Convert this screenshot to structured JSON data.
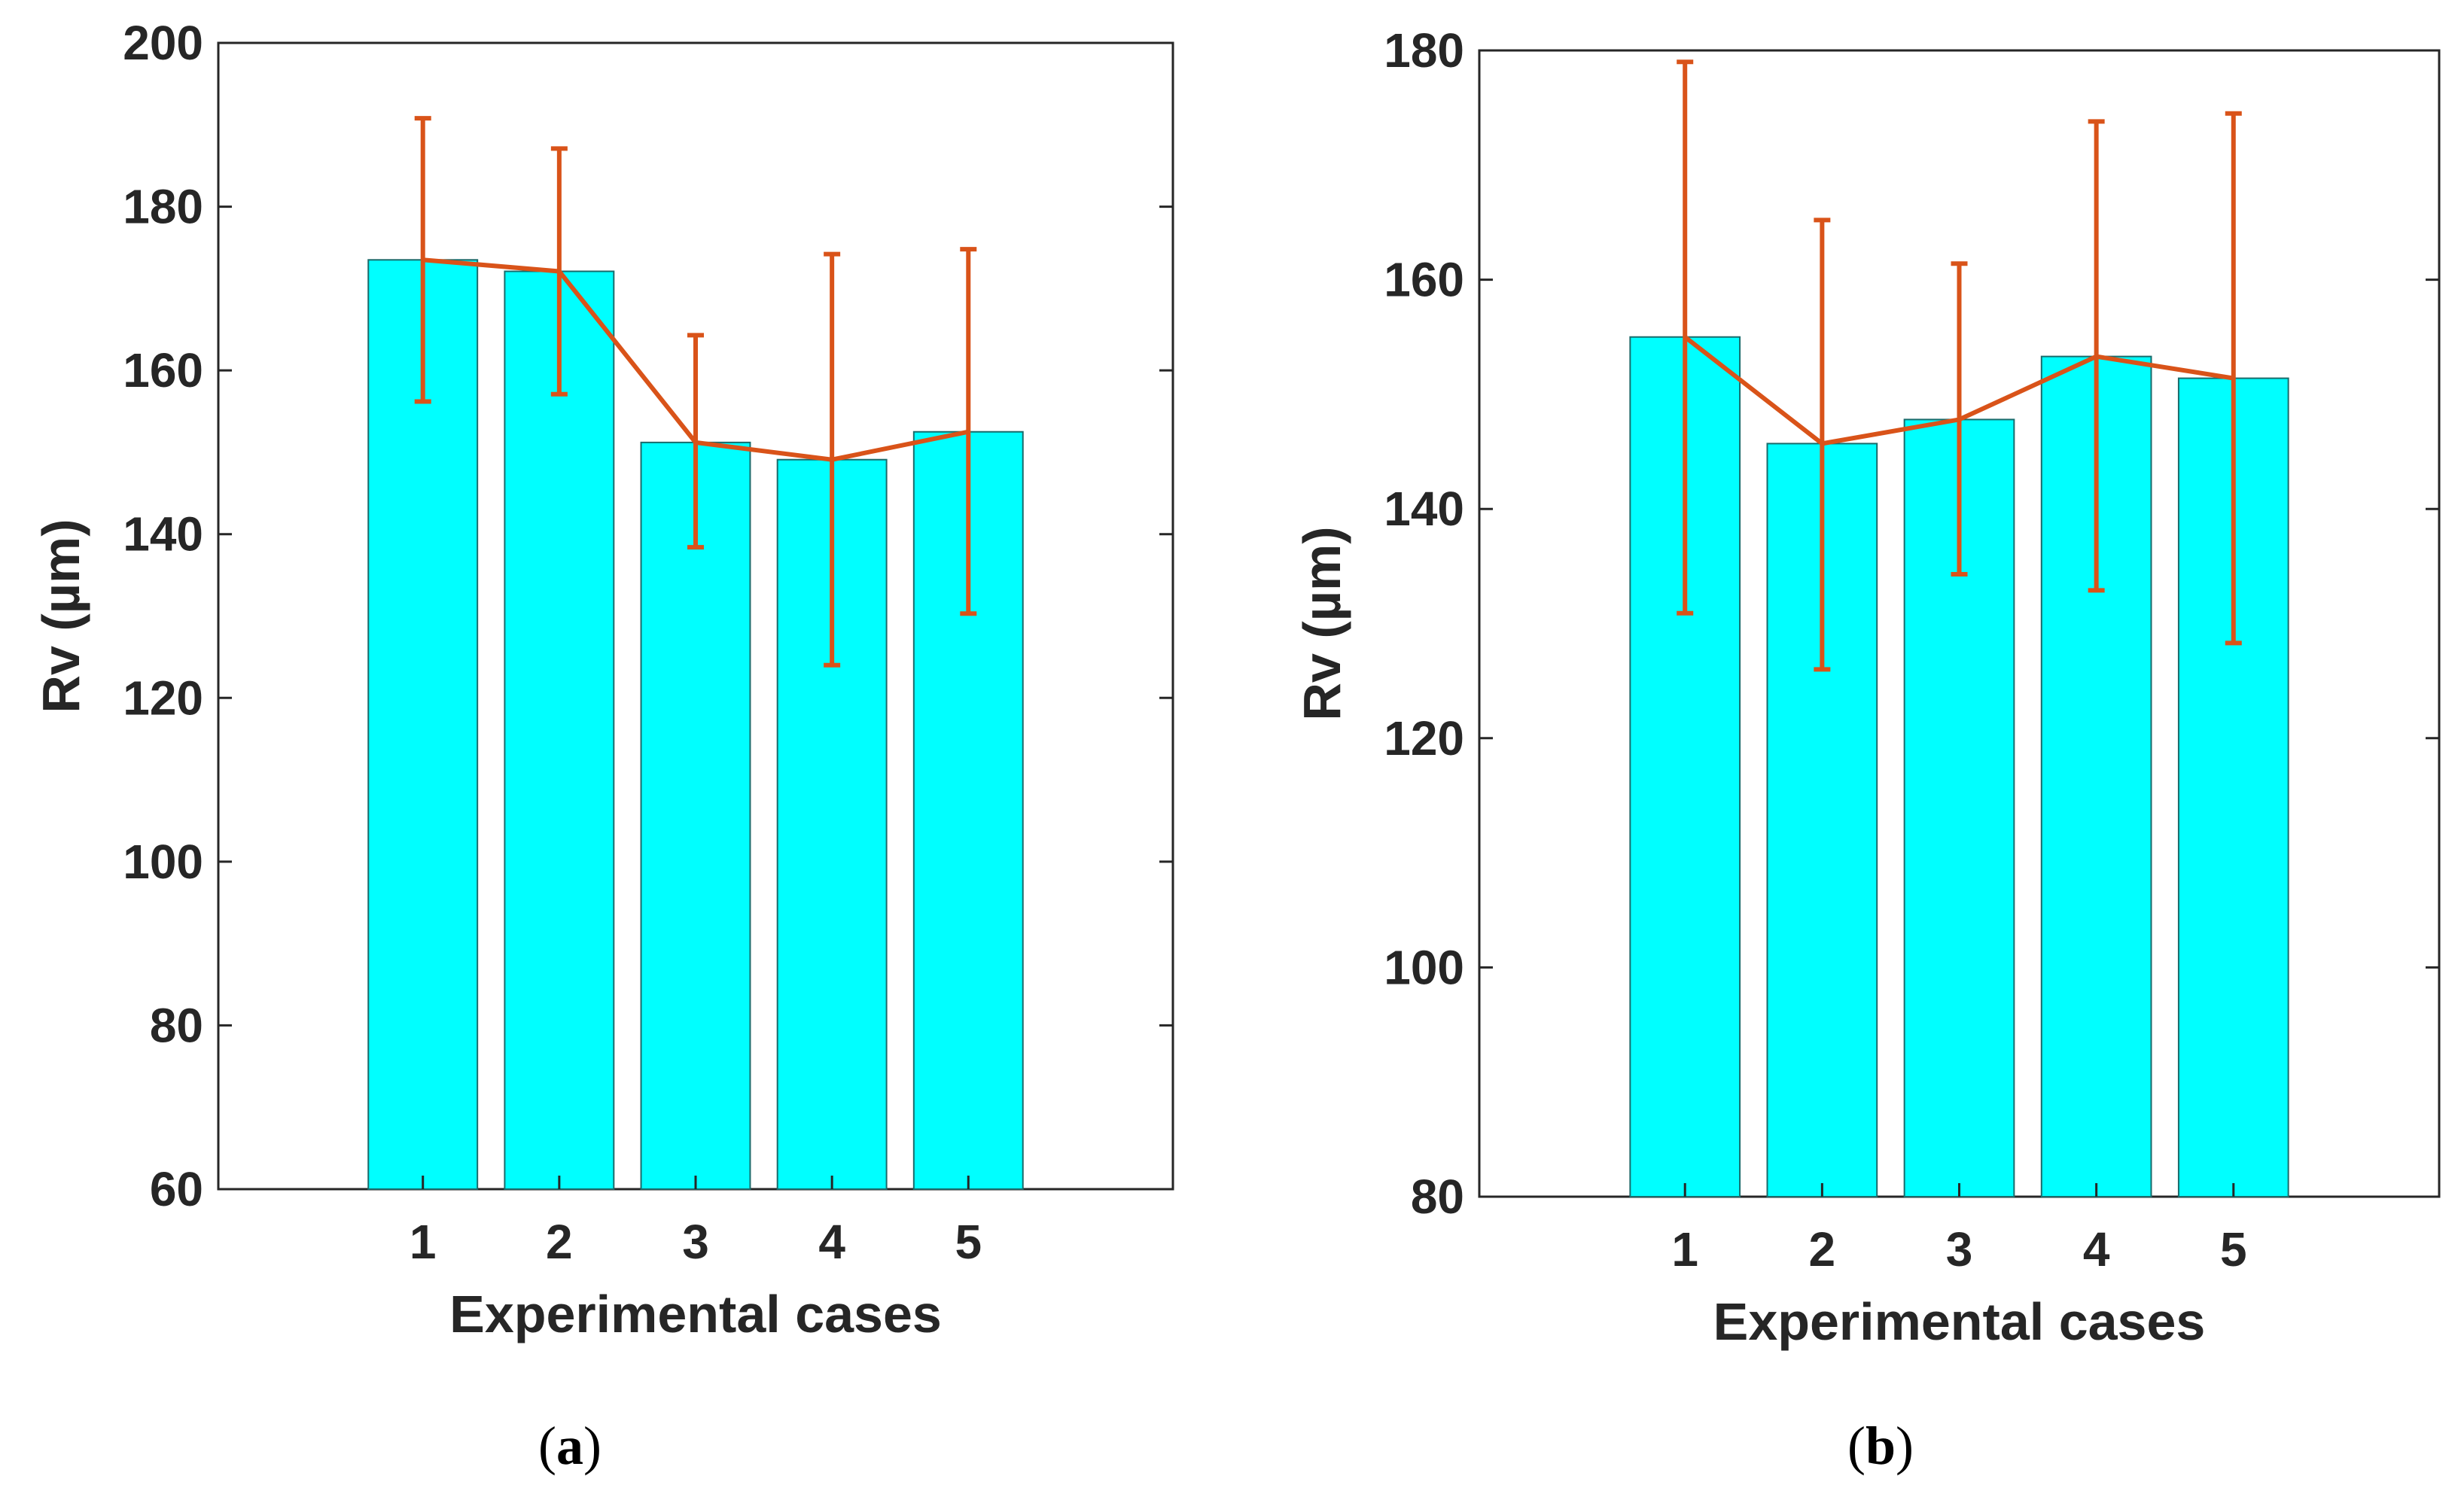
{
  "colors": {
    "bar_fill": "#00FFFF",
    "bar_stroke": "#1a6b6b",
    "line": "#D95319",
    "axis": "#262626"
  },
  "chart_data": [
    {
      "id": "a",
      "type": "bar",
      "panel_label": "a",
      "xlabel": "Experimental cases",
      "ylabel": "Rv (µm)",
      "categories": [
        "1",
        "2",
        "3",
        "4",
        "5"
      ],
      "values": [
        173.5,
        172.1,
        151.2,
        149.1,
        152.5
      ],
      "error_low": [
        156.2,
        157.1,
        138.4,
        124.0,
        130.3
      ],
      "error_high": [
        190.8,
        187.1,
        164.3,
        174.2,
        174.8
      ],
      "ylim": [
        60,
        200
      ],
      "yticks": [
        60,
        80,
        100,
        120,
        140,
        160,
        180,
        200
      ],
      "xlim": [
        -0.5,
        6.5
      ],
      "overlay_line": "mean values connected"
    },
    {
      "id": "b",
      "type": "bar",
      "panel_label": "b",
      "xlabel": "Experimental cases",
      "ylabel": "Rv (µm)",
      "categories": [
        "1",
        "2",
        "3",
        "4",
        "5"
      ],
      "values": [
        155.0,
        145.7,
        147.8,
        153.3,
        151.4
      ],
      "error_low": [
        130.9,
        126.0,
        134.3,
        132.9,
        128.3
      ],
      "error_high": [
        179.0,
        165.2,
        161.4,
        173.8,
        174.5
      ],
      "ylim": [
        80,
        180
      ],
      "yticks": [
        80,
        100,
        120,
        140,
        160,
        180
      ],
      "xlim": [
        -0.5,
        6.5
      ],
      "overlay_line": "mean values connected"
    }
  ]
}
